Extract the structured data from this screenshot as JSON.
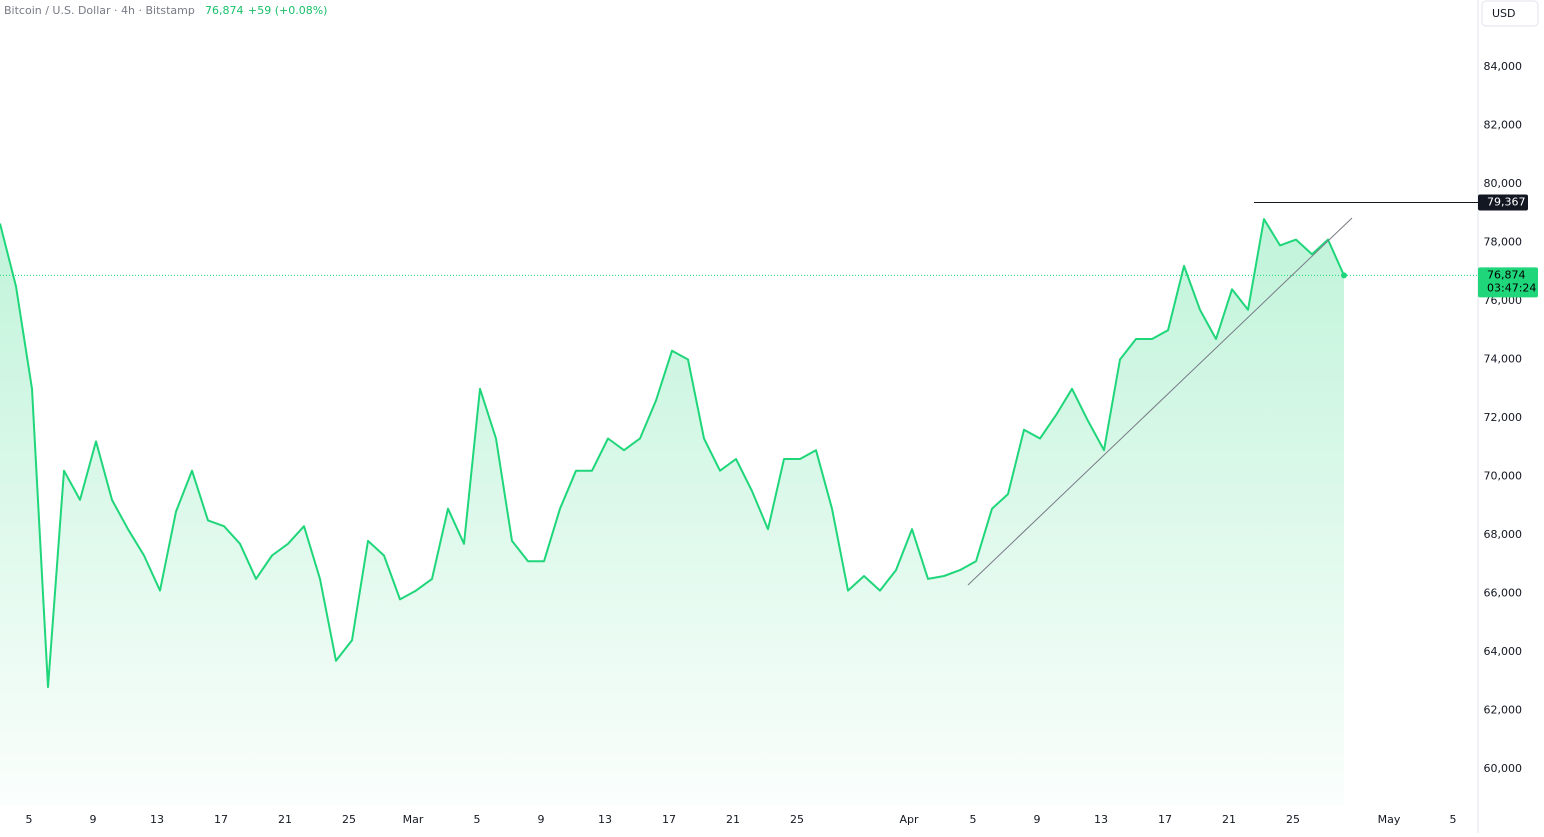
{
  "chart_data": {
    "type": "area",
    "title": "Bitcoin / U.S. Dollar · 4h · Bitstamp",
    "last_label": "76,874",
    "change_label": "+59 (+0.08%)",
    "currency": "USD",
    "color": "#1fd67a",
    "values": [
      78650,
      76500,
      73000,
      62800,
      70200,
      69200,
      71200,
      69200,
      68200,
      67300,
      66100,
      68800,
      70200,
      68500,
      68300,
      67700,
      66500,
      67300,
      67700,
      68300,
      66500,
      63700,
      64400,
      67800,
      67300,
      65800,
      66100,
      66500,
      68900,
      67700,
      73000,
      71300,
      67800,
      67100,
      67100,
      68900,
      70200,
      70200,
      71300,
      70900,
      71300,
      72600,
      74300,
      74000,
      71300,
      70200,
      70600,
      69500,
      68200,
      70600,
      70600,
      70900,
      68900,
      66100,
      66600,
      66100,
      66800,
      68200,
      66500,
      66600,
      66800,
      67100,
      68900,
      69400,
      71600,
      71300,
      72100,
      73000,
      71900,
      70900,
      74000,
      74700,
      74700,
      75000,
      77200,
      75700,
      74700,
      76400,
      75700,
      78800,
      77900,
      78100,
      77600,
      78100,
      76874
    ],
    "xlim": [
      0,
      92.375
    ],
    "xticks": [
      {
        "value": 1.8125,
        "label": "5"
      },
      {
        "value": 5.8125,
        "label": "9"
      },
      {
        "value": 9.8125,
        "label": "13"
      },
      {
        "value": 13.8125,
        "label": "17"
      },
      {
        "value": 17.8125,
        "label": "21"
      },
      {
        "value": 21.8125,
        "label": "25"
      },
      {
        "value": 25.8125,
        "label": "Mar"
      },
      {
        "value": 29.8125,
        "label": "5"
      },
      {
        "value": 33.8125,
        "label": "9"
      },
      {
        "value": 37.8125,
        "label": "13"
      },
      {
        "value": 41.8125,
        "label": "17"
      },
      {
        "value": 45.8125,
        "label": "21"
      },
      {
        "value": 49.8125,
        "label": "25"
      },
      {
        "value": 56.8125,
        "label": "Apr"
      },
      {
        "value": 60.8125,
        "label": "5"
      },
      {
        "value": 64.8125,
        "label": "9"
      },
      {
        "value": 68.8125,
        "label": "13"
      },
      {
        "value": 72.8125,
        "label": "17"
      },
      {
        "value": 76.8125,
        "label": "21"
      },
      {
        "value": 80.8125,
        "label": "25"
      },
      {
        "value": 86.8125,
        "label": "May"
      },
      {
        "value": 90.8125,
        "label": "5"
      }
    ],
    "ylim": [
      58770,
      86290
    ],
    "yticks": [
      {
        "value": 60000,
        "label": "60,000"
      },
      {
        "value": 62000,
        "label": "62,000"
      },
      {
        "value": 64000,
        "label": "64,000"
      },
      {
        "value": 66000,
        "label": "66,000"
      },
      {
        "value": 68000,
        "label": "68,000"
      },
      {
        "value": 70000,
        "label": "70,000"
      },
      {
        "value": 72000,
        "label": "72,000"
      },
      {
        "value": 74000,
        "label": "74,000"
      },
      {
        "value": 76000,
        "label": "76,000"
      },
      {
        "value": 78000,
        "label": "78,000"
      },
      {
        "value": 80000,
        "label": "80,000"
      },
      {
        "value": 82000,
        "label": "82,000"
      },
      {
        "value": 84000,
        "label": "84,000"
      }
    ],
    "hline": {
      "value": 79367,
      "label": "79,367"
    },
    "last_price": {
      "value": 76874,
      "label": "76,874"
    },
    "countdown": "03:47:24"
  }
}
